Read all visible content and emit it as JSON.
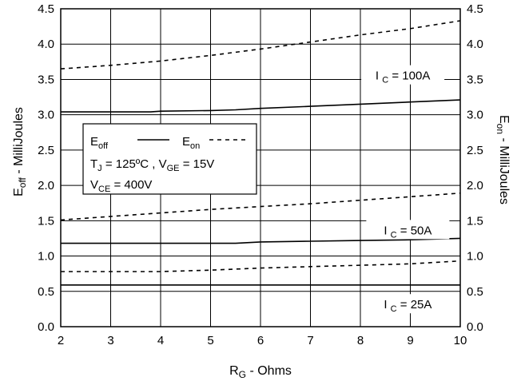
{
  "chart_data": {
    "type": "line",
    "xlabel": {
      "main": "R",
      "sub": "G",
      "rest": " - Ohms"
    },
    "ylabel_left": {
      "main": "E",
      "sub": "off",
      "rest": " - MilliJoules"
    },
    "ylabel_right": {
      "main": "E",
      "sub": "on",
      "rest": " - MilliJoules"
    },
    "xlim": [
      2,
      10
    ],
    "ylim": [
      0,
      4.5
    ],
    "x_ticks": [
      2,
      3,
      4,
      5,
      6,
      7,
      8,
      9,
      10
    ],
    "y_ticks": [
      "0.0",
      "0.5",
      "1.0",
      "1.5",
      "2.0",
      "2.5",
      "3.0",
      "3.5",
      "4.0",
      "4.5"
    ],
    "grid": true,
    "legend": {
      "off": {
        "main": "E",
        "sub": "off"
      },
      "on": {
        "main": "E",
        "sub": "on"
      },
      "cond1": {
        "a": "T",
        "a_sub": "J",
        "a_rest": " = 125ºC ,  ",
        "b": "V",
        "b_sub": "GE",
        "b_rest": " = 15V"
      },
      "cond2": {
        "a": "V",
        "a_sub": "CE",
        "a_rest": " = 400V"
      }
    },
    "annotations": [
      {
        "main": "I",
        "sub": "C",
        "rest": " = 100A",
        "x": 8.85,
        "y": 3.52
      },
      {
        "main": "I",
        "sub": "C",
        "rest": " = 50A",
        "x": 8.95,
        "y": 1.33
      },
      {
        "main": "I",
        "sub": "C",
        "rest": " = 25A",
        "x": 8.95,
        "y": 0.28
      }
    ],
    "series": [
      {
        "curve": "Eoff",
        "current": "100A",
        "style": "solid",
        "x": [
          2,
          3,
          3.8,
          4,
          5,
          5.5,
          6,
          7,
          8,
          9,
          10
        ],
        "y": [
          3.04,
          3.04,
          3.04,
          3.05,
          3.06,
          3.07,
          3.09,
          3.12,
          3.15,
          3.18,
          3.21
        ]
      },
      {
        "curve": "Eon",
        "current": "100A",
        "style": "dashed",
        "x": [
          2,
          3,
          4,
          5,
          6,
          7,
          8,
          9,
          10
        ],
        "y": [
          3.65,
          3.7,
          3.76,
          3.84,
          3.93,
          4.03,
          4.13,
          4.22,
          4.33
        ]
      },
      {
        "curve": "Eoff",
        "current": "50A",
        "style": "solid",
        "x": [
          2,
          3,
          4,
          5,
          5.5,
          6,
          7,
          8,
          9,
          10
        ],
        "y": [
          1.18,
          1.18,
          1.18,
          1.18,
          1.18,
          1.2,
          1.21,
          1.22,
          1.23,
          1.25
        ]
      },
      {
        "curve": "Eon",
        "current": "50A",
        "style": "dashed",
        "x": [
          2,
          3,
          4,
          5,
          6,
          7,
          8,
          9,
          10
        ],
        "y": [
          1.51,
          1.56,
          1.61,
          1.66,
          1.7,
          1.74,
          1.79,
          1.84,
          1.89
        ]
      },
      {
        "curve": "Eon",
        "current": "25A",
        "style": "dashed",
        "x": [
          2,
          3,
          4,
          5,
          6,
          7,
          8,
          9,
          10
        ],
        "y": [
          0.78,
          0.78,
          0.78,
          0.8,
          0.83,
          0.85,
          0.87,
          0.89,
          0.93
        ]
      },
      {
        "curve": "Eoff",
        "current": "25A",
        "style": "solid",
        "x": [
          2,
          3,
          4,
          5,
          6,
          7,
          8,
          9,
          10
        ],
        "y": [
          0.59,
          0.59,
          0.59,
          0.59,
          0.59,
          0.59,
          0.59,
          0.59,
          0.59
        ]
      }
    ]
  }
}
